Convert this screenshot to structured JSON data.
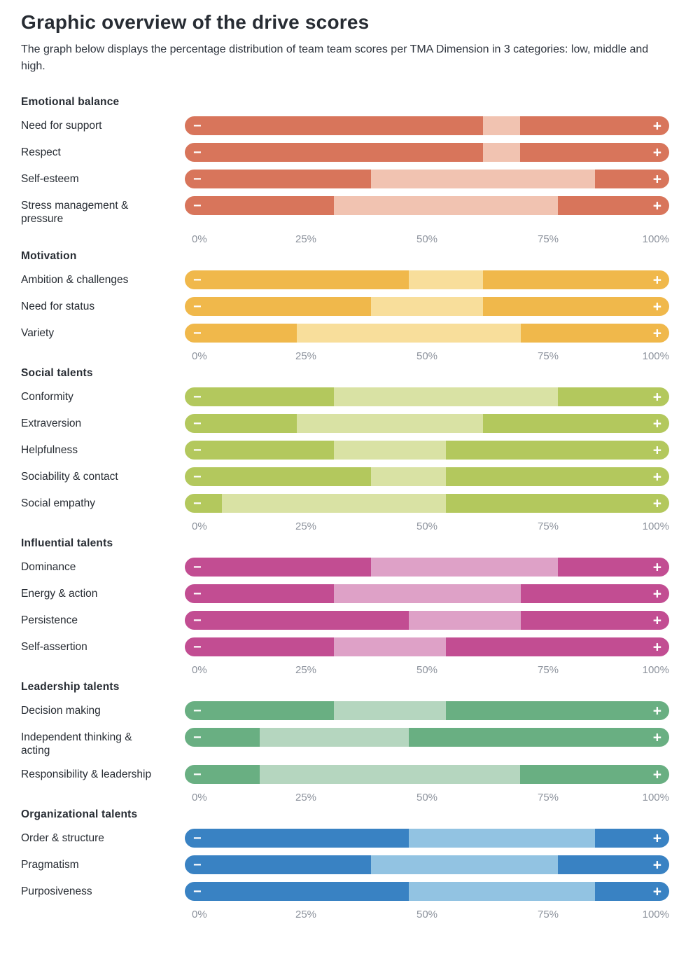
{
  "page": {
    "title": "Graphic overview of the drive scores",
    "subtitle": "The graph below displays the percentage distribution of team team scores per TMA Dimension in 3 categories: low, middle and high."
  },
  "icons": {
    "minus": "−",
    "plus": "+"
  },
  "chart_data": {
    "type": "bar",
    "orientation": "horizontal",
    "stacked": true,
    "unit": "percent",
    "xlim": [
      0,
      100
    ],
    "tick_labels": [
      "0%",
      "25%",
      "50%",
      "75%",
      "100%"
    ],
    "categories_legend": [
      "low",
      "middle",
      "high"
    ],
    "grid": false,
    "groups": [
      {
        "name": "Emotional balance",
        "colors": {
          "strong": "#d8755b",
          "light": "#f1c3b1"
        },
        "rows": [
          {
            "label": "Need for support",
            "low": 61.5,
            "middle": 7.7,
            "high": 30.8
          },
          {
            "label": "Respect",
            "low": 61.5,
            "middle": 7.7,
            "high": 30.8
          },
          {
            "label": "Self-esteem",
            "low": 38.5,
            "middle": 46.2,
            "high": 15.3
          },
          {
            "label": "Stress management &\npressure",
            "low": 30.8,
            "middle": 46.2,
            "high": 23.0
          }
        ]
      },
      {
        "name": "Motivation",
        "colors": {
          "strong": "#f0b84b",
          "light": "#f8de9b"
        },
        "rows": [
          {
            "label": "Ambition & challenges",
            "low": 46.2,
            "middle": 15.4,
            "high": 38.4
          },
          {
            "label": "Need for status",
            "low": 38.5,
            "middle": 23.1,
            "high": 38.4
          },
          {
            "label": "Variety",
            "low": 23.1,
            "middle": 46.2,
            "high": 30.7
          }
        ]
      },
      {
        "name": "Social talents",
        "colors": {
          "strong": "#b3c85d",
          "light": "#d9e2a4"
        },
        "rows": [
          {
            "label": "Conformity",
            "low": 30.8,
            "middle": 46.2,
            "high": 23.0
          },
          {
            "label": "Extraversion",
            "low": 23.1,
            "middle": 38.5,
            "high": 38.4
          },
          {
            "label": "Helpfulness",
            "low": 30.8,
            "middle": 23.1,
            "high": 46.1
          },
          {
            "label": "Sociability & contact",
            "low": 38.5,
            "middle": 15.4,
            "high": 46.1
          },
          {
            "label": "Social empathy",
            "low": 7.7,
            "middle": 46.2,
            "high": 46.1
          }
        ]
      },
      {
        "name": "Influential talents",
        "colors": {
          "strong": "#c24d92",
          "light": "#dea1c7"
        },
        "rows": [
          {
            "label": "Dominance",
            "low": 38.5,
            "middle": 38.5,
            "high": 23.0
          },
          {
            "label": "Energy & action",
            "low": 30.8,
            "middle": 38.5,
            "high": 30.7
          },
          {
            "label": "Persistence",
            "low": 46.2,
            "middle": 23.1,
            "high": 30.7
          },
          {
            "label": "Self-assertion",
            "low": 30.8,
            "middle": 23.1,
            "high": 46.1
          }
        ]
      },
      {
        "name": "Leadership talents",
        "colors": {
          "strong": "#69af82",
          "light": "#b5d6bf"
        },
        "rows": [
          {
            "label": "Decision making",
            "low": 30.8,
            "middle": 23.1,
            "high": 46.1
          },
          {
            "label": "Independent thinking &\nacting",
            "low": 15.4,
            "middle": 30.8,
            "high": 53.8
          },
          {
            "label": "Responsibility & leadership",
            "low": 15.4,
            "middle": 53.8,
            "high": 30.8
          }
        ]
      },
      {
        "name": "Organizational talents",
        "colors": {
          "strong": "#3982c3",
          "light": "#92c3e2"
        },
        "rows": [
          {
            "label": "Order & structure",
            "low": 46.2,
            "middle": 38.5,
            "high": 15.3
          },
          {
            "label": "Pragmatism",
            "low": 38.5,
            "middle": 38.5,
            "high": 23.0
          },
          {
            "label": "Purposiveness",
            "low": 46.2,
            "middle": 38.5,
            "high": 15.3
          }
        ]
      }
    ]
  }
}
